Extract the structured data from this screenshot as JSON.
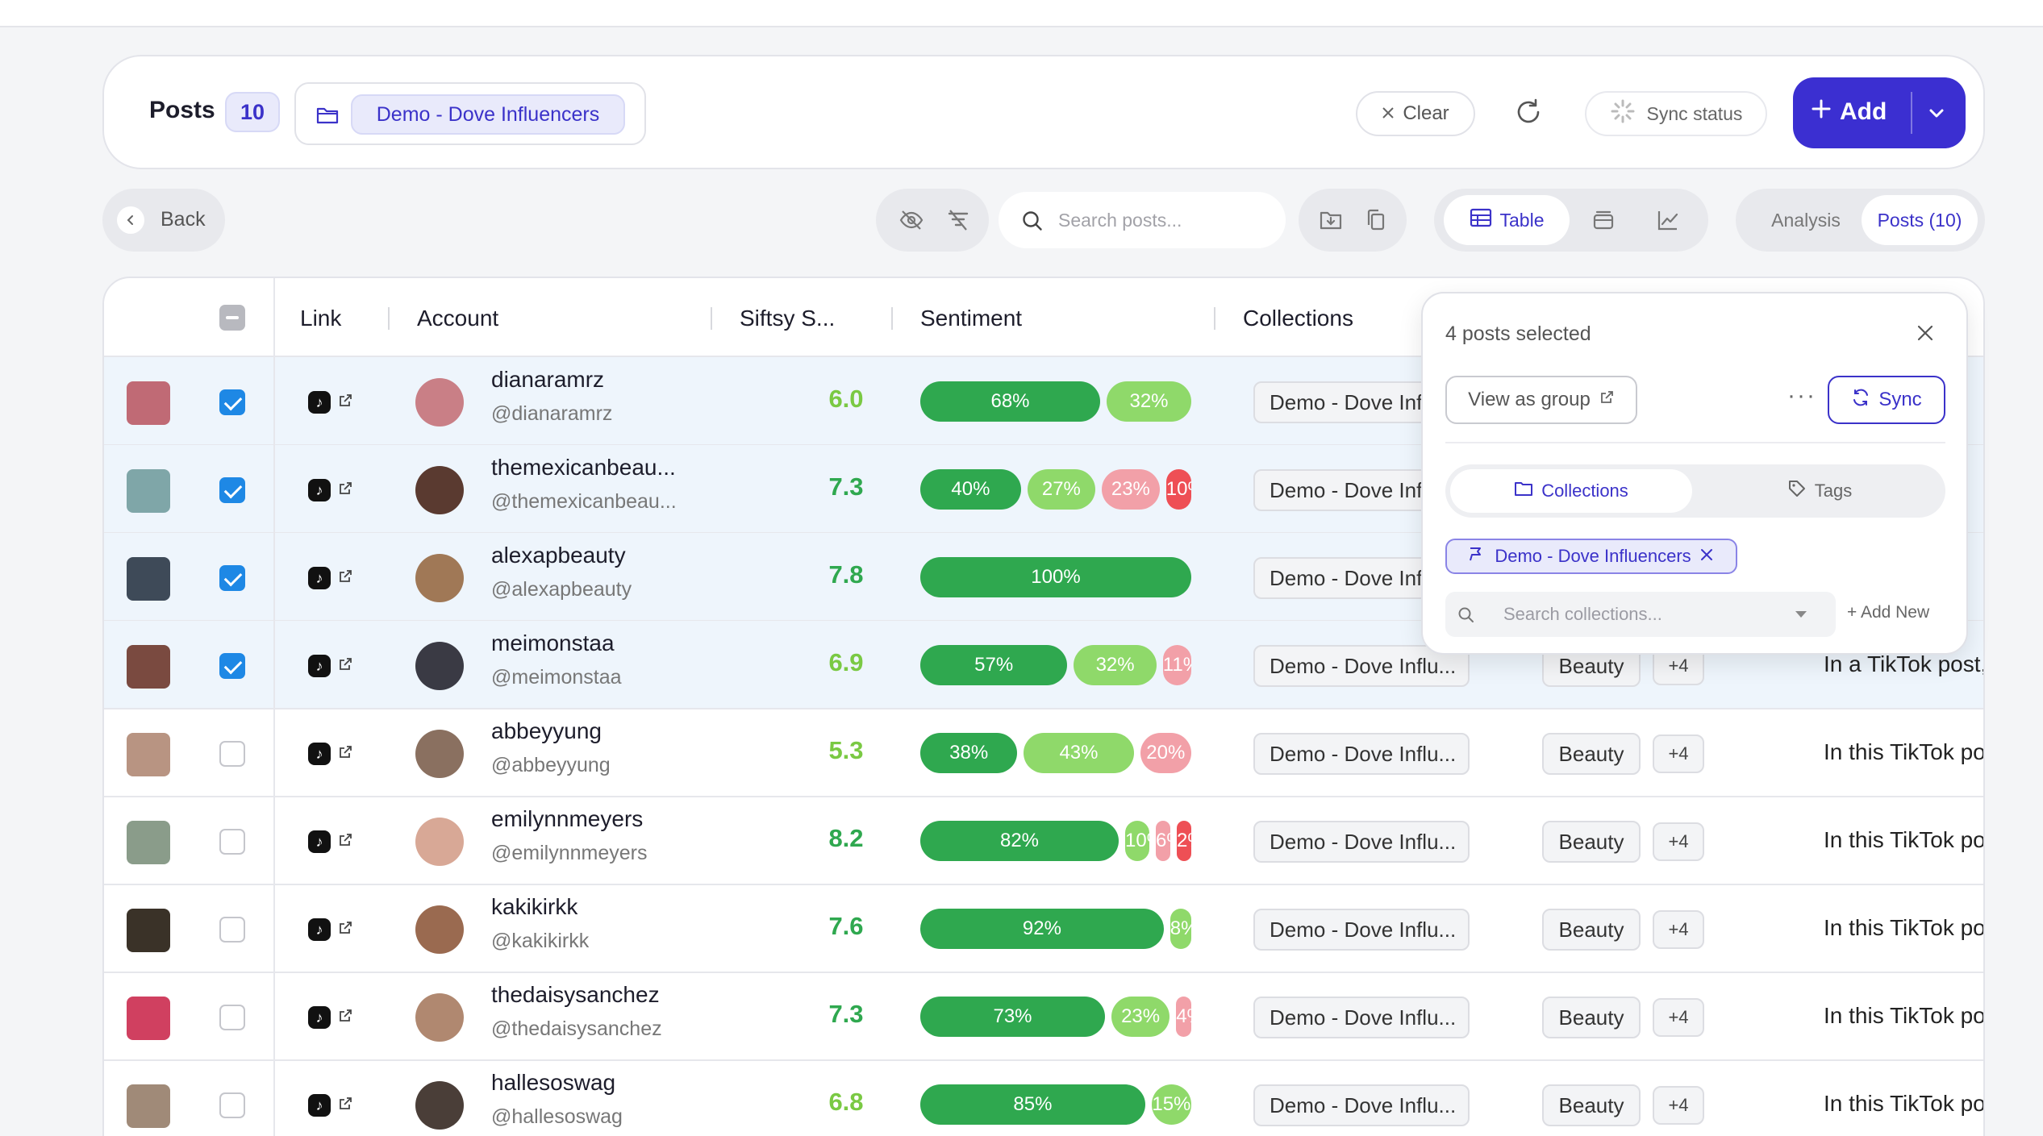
{
  "header": {
    "title": "Posts",
    "count": "10",
    "collection": "Demo - Dove Influencers",
    "clear_label": "Clear",
    "sync_status_label": "Sync status",
    "add_label": "Add"
  },
  "toolbar": {
    "back_label": "Back",
    "search_placeholder": "Search posts...",
    "view_table_label": "Table",
    "tab_analysis": "Analysis",
    "tab_posts": "Posts (10)"
  },
  "table": {
    "columns": [
      "Link",
      "Account",
      "Siftsy S...",
      "Sentiment",
      "Collections"
    ],
    "rows": [
      {
        "account": "dianaramrz",
        "handle": "@dianaramrz",
        "score": "6.0",
        "score_color": "#7ac943",
        "selected": true,
        "sentiment": [
          [
            "68%",
            68,
            "s1"
          ],
          [
            "32%",
            32,
            "s2"
          ]
        ],
        "collection": "Demo - Dove Influ...",
        "tag": "",
        "more": "",
        "desc": "",
        "thumb": "#c06a75",
        "avatar": "#c97f86"
      },
      {
        "account": "themexicanbeau...",
        "handle": "@themexicanbeau...",
        "score": "7.3",
        "score_color": "#2fa84f",
        "selected": true,
        "sentiment": [
          [
            "40%",
            40,
            "s1"
          ],
          [
            "27%",
            27,
            "s2"
          ],
          [
            "23%",
            23,
            "s3"
          ],
          [
            "10%",
            10,
            "s4"
          ]
        ],
        "collection": "Demo - Dove Influ...",
        "tag": "",
        "more": "",
        "desc": "",
        "thumb": "#7fa6a8",
        "avatar": "#5a3a30"
      },
      {
        "account": "alexapbeauty",
        "handle": "@alexapbeauty",
        "score": "7.8",
        "score_color": "#2fa84f",
        "selected": true,
        "sentiment": [
          [
            "100%",
            100,
            "s1"
          ]
        ],
        "collection": "Demo - Dove Influ...",
        "tag": "",
        "more": "",
        "desc": "",
        "thumb": "#3e4a58",
        "avatar": "#a07856"
      },
      {
        "account": "meimonstaa",
        "handle": "@meimonstaa",
        "score": "6.9",
        "score_color": "#7ac943",
        "selected": true,
        "sentiment": [
          [
            "57%",
            57,
            "s1"
          ],
          [
            "32%",
            32,
            "s2"
          ],
          [
            "11%",
            11,
            "s3"
          ]
        ],
        "collection": "Demo - Dove Influ...",
        "tag": "Beauty",
        "more": "+4",
        "desc": "In a TikTok post,",
        "thumb": "#7a4a40",
        "avatar": "#3a3a44"
      },
      {
        "account": "abbeyyung",
        "handle": "@abbeyyung",
        "score": "5.3",
        "score_color": "#7ac943",
        "selected": false,
        "sentiment": [
          [
            "38%",
            38,
            "s1"
          ],
          [
            "43%",
            43,
            "s2"
          ],
          [
            "20%",
            20,
            "s3"
          ]
        ],
        "collection": "Demo - Dove Influ...",
        "tag": "Beauty",
        "more": "+4",
        "desc": "In this TikTok po",
        "thumb": "#b89482",
        "avatar": "#8a7060"
      },
      {
        "account": "emilynnmeyers",
        "handle": "@emilynnmeyers",
        "score": "8.2",
        "score_color": "#2fa84f",
        "selected": false,
        "sentiment": [
          [
            "82%",
            82,
            "s1"
          ],
          [
            "10%",
            10,
            "s2"
          ],
          [
            "6%",
            6,
            "s3"
          ],
          [
            "2%",
            2,
            "s4"
          ]
        ],
        "collection": "Demo - Dove Influ...",
        "tag": "Beauty",
        "more": "+4",
        "desc": "In this TikTok po",
        "thumb": "#8a9c8a",
        "avatar": "#d8a896"
      },
      {
        "account": "kakikirkk",
        "handle": "@kakikirkk",
        "score": "7.6",
        "score_color": "#2fa84f",
        "selected": false,
        "sentiment": [
          [
            "92%",
            92,
            "s1"
          ],
          [
            "8%",
            8,
            "s2"
          ]
        ],
        "collection": "Demo - Dove Influ...",
        "tag": "Beauty",
        "more": "+4",
        "desc": "In this TikTok po",
        "thumb": "#3a3228",
        "avatar": "#9a6a50"
      },
      {
        "account": "thedaisysanchez",
        "handle": "@thedaisysanchez",
        "score": "7.3",
        "score_color": "#2fa84f",
        "selected": false,
        "sentiment": [
          [
            "73%",
            73,
            "s1"
          ],
          [
            "23%",
            23,
            "s2"
          ],
          [
            "4%",
            4,
            "s3"
          ]
        ],
        "collection": "Demo - Dove Influ...",
        "tag": "Beauty",
        "more": "+4",
        "desc": "In this TikTok po",
        "thumb": "#d04060",
        "avatar": "#b08870"
      },
      {
        "account": "hallesoswag",
        "handle": "@hallesoswag",
        "score": "6.8",
        "score_color": "#7ac943",
        "selected": false,
        "sentiment": [
          [
            "85%",
            85,
            "s1"
          ],
          [
            "15%",
            15,
            "s2"
          ]
        ],
        "collection": "Demo - Dove Influ...",
        "tag": "Beauty",
        "more": "+4",
        "desc": "In this TikTok po",
        "thumb": "#a08a78",
        "avatar": "#4a3e38"
      }
    ]
  },
  "popover": {
    "title": "4 posts selected",
    "view_group_label": "View as group",
    "sync_label": "Sync",
    "tab_collections": "Collections",
    "tab_tags": "Tags",
    "chip_label": "Demo - Dove Influencers",
    "search_placeholder": "Search collections...",
    "add_new_label": "+ Add New"
  },
  "colors": {
    "accent": "#3b2fd1",
    "positive": "#2fa84f",
    "light_positive": "#8fd96a",
    "light_negative": "#f2a0a8",
    "negative": "#ee4f55"
  }
}
